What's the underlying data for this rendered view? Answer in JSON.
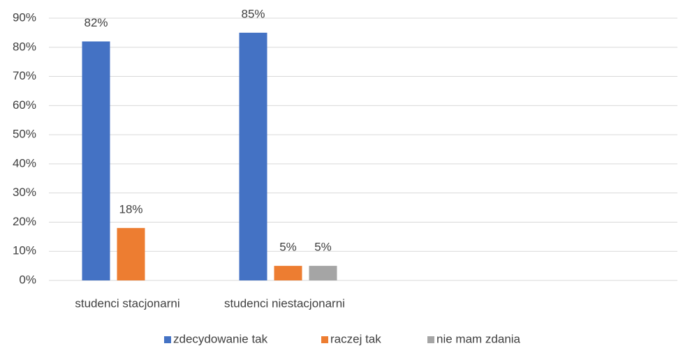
{
  "chart_data": {
    "type": "bar",
    "categories": [
      "studenci stacjonarni",
      "studenci niestacjonarni",
      null,
      null
    ],
    "series": [
      {
        "name": "zdecydowanie tak",
        "color": "#4472c4",
        "values": [
          82,
          85,
          null,
          null
        ],
        "value_labels": [
          "82%",
          "85%",
          null,
          null
        ]
      },
      {
        "name": "raczej tak",
        "color": "#ed7d31",
        "values": [
          18,
          5,
          null,
          null
        ],
        "value_labels": [
          "18%",
          "5%",
          null,
          null
        ]
      },
      {
        "name": "nie mam zdania",
        "color": "#a5a5a5",
        "values": [
          null,
          5,
          null,
          null
        ],
        "value_labels": [
          null,
          "5%",
          null,
          null
        ]
      }
    ],
    "ylim": [
      0,
      90
    ],
    "yticks": [
      {
        "value": 0,
        "label": "0%"
      },
      {
        "value": 10,
        "label": "10%"
      },
      {
        "value": 20,
        "label": "20%"
      },
      {
        "value": 30,
        "label": "30%"
      },
      {
        "value": 40,
        "label": "40%"
      },
      {
        "value": 50,
        "label": "50%"
      },
      {
        "value": 60,
        "label": "60%"
      },
      {
        "value": 70,
        "label": "70%"
      },
      {
        "value": 80,
        "label": "80%"
      },
      {
        "value": 90,
        "label": "90%"
      }
    ],
    "grid": true,
    "legend": "bottom"
  }
}
